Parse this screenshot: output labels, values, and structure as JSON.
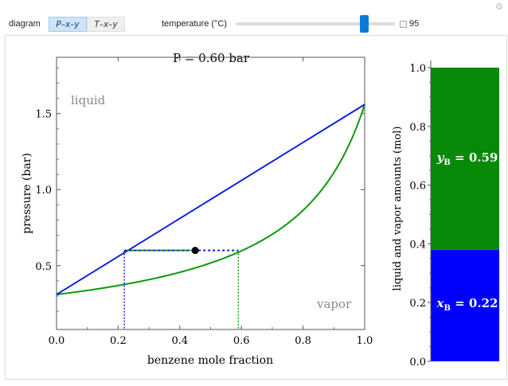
{
  "controls": {
    "diagram_label": "diagram",
    "diagram_options": [
      "P–x–y",
      "T–x–y"
    ],
    "diagram_selected": "P–x–y",
    "temperature_label": "temperature (°C)",
    "temperature_value": "95",
    "temperature_fraction": 0.805
  },
  "left_chart": {
    "title": "P = 0.60 bar",
    "xlabel": "benzene mole fraction",
    "ylabel": "pressure (bar)",
    "region_labels": {
      "liquid": "liquid",
      "vapor": "vapor"
    },
    "colors": {
      "bubble": "#0a1fe0",
      "dew": "#0a9a0a",
      "point": "#000000"
    }
  },
  "right_chart": {
    "ylabel": "liquid and vapor amounts (mol)",
    "liquid_label": "x",
    "liquid_sub": "B",
    "liquid_value": " = 0.22",
    "vapor_label": "y",
    "vapor_sub": "B",
    "vapor_value": " = 0.59",
    "colors": {
      "liquid": "#0000ff",
      "vapor": "#078a07"
    }
  },
  "chart_data": [
    {
      "type": "line",
      "title": "P = 0.60 bar",
      "xlabel": "benzene mole fraction",
      "ylabel": "pressure (bar)",
      "xlim": [
        0,
        1
      ],
      "ylim": [
        0.08,
        1.87
      ],
      "xticks": [
        0.0,
        0.2,
        0.4,
        0.6,
        0.8,
        1.0
      ],
      "yticks": [
        0.5,
        1.0,
        1.5
      ],
      "series": [
        {
          "key": "bubble",
          "x": [
            0,
            1
          ],
          "y": [
            0.31,
            1.56
          ]
        },
        {
          "key": "dew",
          "p_A": 0.31,
          "p_B": 1.56
        }
      ],
      "operating_point": {
        "x": 0.45,
        "P": 0.6
      },
      "tie_line": {
        "x_liquid": 0.22,
        "y_vapor": 0.59,
        "P": 0.6
      }
    },
    {
      "type": "bar",
      "ylabel": "liquid and vapor amounts (mol)",
      "ylim": [
        0,
        1
      ],
      "yticks": [
        0.0,
        0.2,
        0.4,
        0.6,
        0.8,
        1.0
      ],
      "stack": [
        {
          "key": "liquid",
          "value": 0.38
        },
        {
          "key": "vapor",
          "value": 0.62
        }
      ]
    }
  ]
}
